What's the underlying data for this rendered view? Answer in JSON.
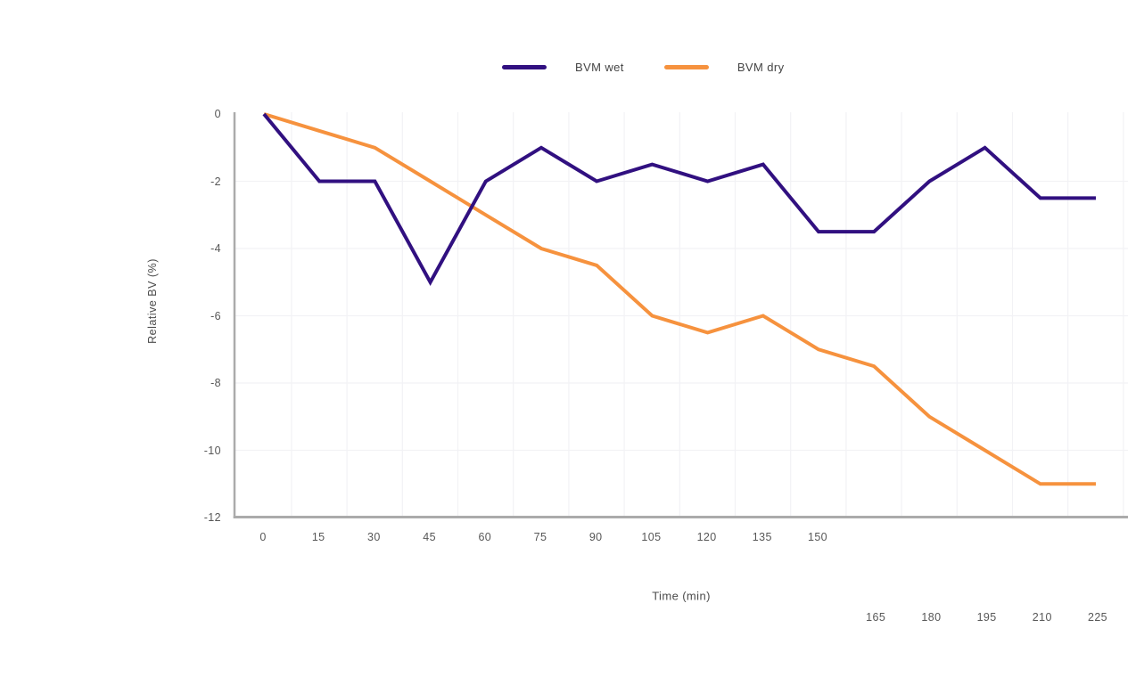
{
  "chart_data": {
    "type": "line",
    "title": "",
    "xlabel": "Time (min)",
    "ylabel": "Relative BV (%)",
    "x": [
      0,
      15,
      30,
      45,
      60,
      75,
      90,
      105,
      120,
      135,
      150,
      165,
      180,
      195,
      210,
      225
    ],
    "x_tick_labels": [
      "0",
      "15",
      "30",
      "45",
      "60",
      "75",
      "90",
      "105",
      "120",
      "135",
      "150",
      "165",
      "180",
      "195",
      "210",
      "225"
    ],
    "y_ticks": [
      0,
      -2,
      -4,
      -6,
      -8,
      -10,
      -12
    ],
    "y_tick_labels": [
      "0",
      "-2",
      "-4",
      "-6",
      "-8",
      "-10",
      "-12"
    ],
    "xlim": [
      0,
      225
    ],
    "ylim": [
      -12,
      0
    ],
    "grid": true,
    "legend_position": "top-center",
    "series": [
      {
        "name": "BVM wet",
        "color": "#311080",
        "values": [
          0,
          -2,
          -2,
          -5,
          -2,
          -1,
          -2,
          -1.5,
          -2,
          -1.5,
          -3.5,
          -3.5,
          -2,
          -1,
          -2.5,
          -2.5
        ]
      },
      {
        "name": "BVM dry",
        "color": "#f6923e",
        "values": [
          0,
          -0.5,
          -1,
          -2,
          -3,
          -4,
          -4.5,
          -6,
          -6.5,
          -6,
          -7,
          -7.5,
          -9,
          -10,
          -11,
          -11
        ]
      }
    ],
    "style_colors": {
      "axis_line": "#ababab",
      "gridline": "#f2f2f5",
      "tick_text": "#575757",
      "label_text": "#4c4c4c"
    }
  }
}
